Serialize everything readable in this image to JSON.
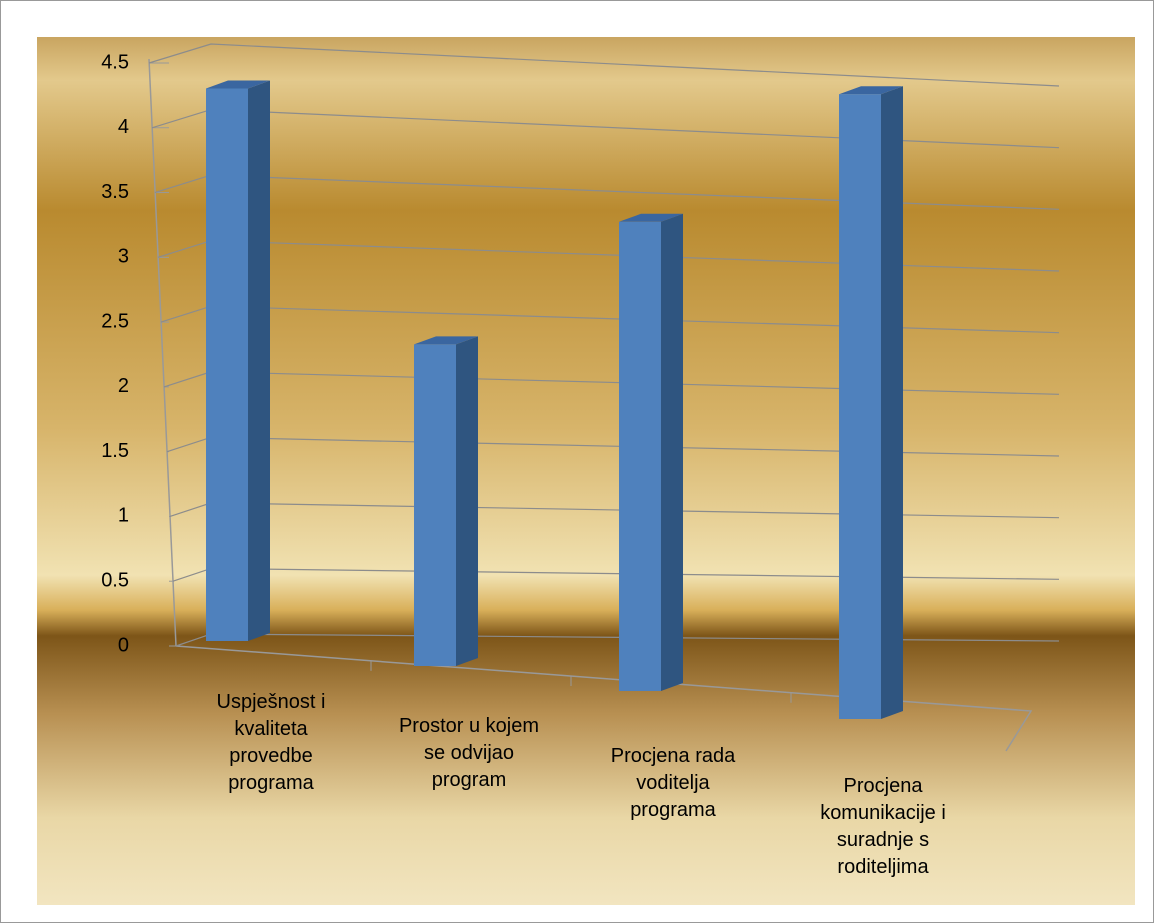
{
  "chart_data": {
    "type": "bar3d",
    "categories": [
      "Uspješnost i kvaliteta provedbe programa",
      "Prostor u kojem se odvijao program",
      "Procjena rada voditelja programa",
      "Procjena komunikacije i suradnje s roditeljima"
    ],
    "values": [
      4.25,
      2.4,
      3.4,
      4.4
    ],
    "color": "#4f81bd",
    "ylim": [
      0,
      4.5
    ],
    "yticks": [
      0,
      0.5,
      1,
      1.5,
      2,
      2.5,
      3,
      3.5,
      4,
      4.5
    ],
    "grid": true
  }
}
